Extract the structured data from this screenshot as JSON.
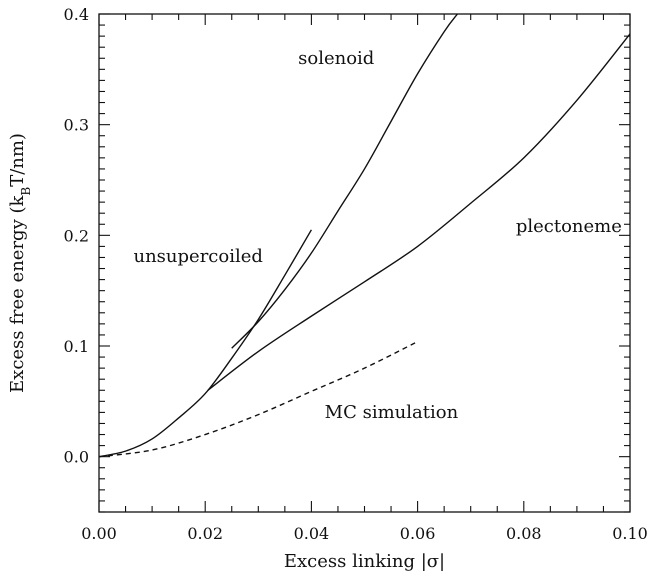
{
  "chart_data": {
    "type": "line",
    "xlabel": "Excess linking |σ|",
    "ylabel": "Excess free energy (k_BT/nm)",
    "ylabel_parts": {
      "pre": "Excess free energy (k",
      "sub": "B",
      "post": "T/nm)"
    },
    "xlim": [
      0.0,
      0.1
    ],
    "ylim": [
      -0.05,
      0.4
    ],
    "xticks": [
      0.0,
      0.02,
      0.04,
      0.06,
      0.08,
      0.1
    ],
    "xtick_labels": [
      "0.00",
      "0.02",
      "0.04",
      "0.06",
      "0.08",
      "0.10"
    ],
    "yticks": [
      0.0,
      0.1,
      0.2,
      0.3,
      0.4
    ],
    "ytick_labels": [
      "0.0",
      "0.1",
      "0.2",
      "0.3",
      "0.4"
    ],
    "grid": false,
    "legend": "none",
    "series": [
      {
        "label": "unsupercoiled",
        "style": "solid",
        "x": [
          0.0,
          0.005,
          0.01,
          0.015,
          0.02,
          0.025,
          0.03,
          0.035,
          0.04
        ],
        "y": [
          0.0,
          0.005,
          0.016,
          0.035,
          0.057,
          0.089,
          0.124,
          0.164,
          0.205
        ]
      },
      {
        "label": "solenoid",
        "style": "solid",
        "x": [
          0.025,
          0.03,
          0.035,
          0.04,
          0.045,
          0.05,
          0.055,
          0.06,
          0.065,
          0.0675
        ],
        "y": [
          0.098,
          0.122,
          0.151,
          0.184,
          0.222,
          0.26,
          0.303,
          0.346,
          0.384,
          0.4
        ]
      },
      {
        "label": "plectoneme",
        "style": "solid",
        "x": [
          0.0205,
          0.03,
          0.04,
          0.05,
          0.06,
          0.07,
          0.08,
          0.09,
          0.1
        ],
        "y": [
          0.06,
          0.095,
          0.127,
          0.158,
          0.19,
          0.229,
          0.27,
          0.322,
          0.382
        ]
      },
      {
        "label": "MC simulation",
        "style": "dashed",
        "x": [
          0.0,
          0.01,
          0.02,
          0.03,
          0.04,
          0.05,
          0.06
        ],
        "y": [
          0.0,
          0.006,
          0.02,
          0.038,
          0.059,
          0.08,
          0.104
        ]
      }
    ],
    "annotations": [
      {
        "text": "solenoid",
        "x": 0.0375,
        "y": 0.355
      },
      {
        "text": "unsupercoiled",
        "x": 0.0065,
        "y": 0.176
      },
      {
        "text": "plectoneme",
        "x": 0.0785,
        "y": 0.203
      },
      {
        "text": "MC simulation",
        "x": 0.0425,
        "y": 0.035
      }
    ]
  }
}
